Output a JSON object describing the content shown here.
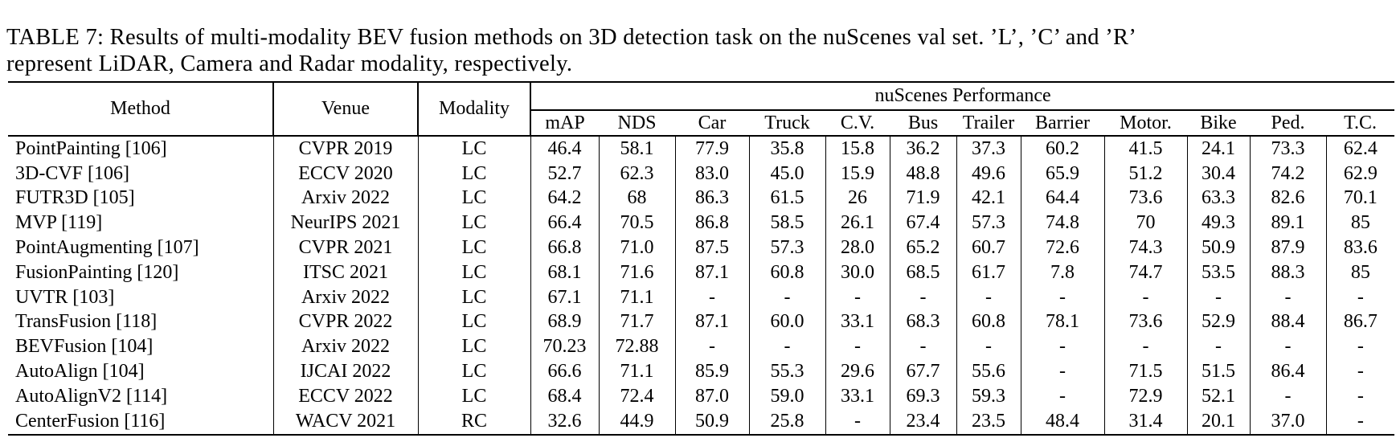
{
  "caption": {
    "line1": "TABLE 7: Results of multi-modality BEV fusion methods on 3D detection task on the nuScenes val set. ’L’, ’C’ and ’R’",
    "line2": "represent LiDAR, Camera and Radar modality, respectively."
  },
  "table": {
    "group_header": "nuScenes Performance",
    "columns": [
      "Method",
      "Venue",
      "Modality"
    ],
    "perf_columns": [
      "mAP",
      "NDS",
      "Car",
      "Truck",
      "C.V.",
      "Bus",
      "Trailer",
      "Barrier",
      "Motor.",
      "Bike",
      "Ped.",
      "T.C."
    ],
    "rows": [
      {
        "method": "PointPainting [106]",
        "venue": "CVPR 2019",
        "modality": "LC",
        "values": [
          "46.4",
          "58.1",
          "77.9",
          "35.8",
          "15.8",
          "36.2",
          "37.3",
          "60.2",
          "41.5",
          "24.1",
          "73.3",
          "62.4"
        ]
      },
      {
        "method": "3D-CVF [106]",
        "venue": "ECCV 2020",
        "modality": "LC",
        "values": [
          "52.7",
          "62.3",
          "83.0",
          "45.0",
          "15.9",
          "48.8",
          "49.6",
          "65.9",
          "51.2",
          "30.4",
          "74.2",
          "62.9"
        ]
      },
      {
        "method": "FUTR3D [105]",
        "venue": "Arxiv 2022",
        "modality": "LC",
        "values": [
          "64.2",
          "68",
          "86.3",
          "61.5",
          "26",
          "71.9",
          "42.1",
          "64.4",
          "73.6",
          "63.3",
          "82.6",
          "70.1"
        ]
      },
      {
        "method": "MVP [119]",
        "venue": "NeurIPS 2021",
        "modality": "LC",
        "values": [
          "66.4",
          "70.5",
          "86.8",
          "58.5",
          "26.1",
          "67.4",
          "57.3",
          "74.8",
          "70",
          "49.3",
          "89.1",
          "85"
        ]
      },
      {
        "method": "PointAugmenting [107]",
        "venue": "CVPR 2021",
        "modality": "LC",
        "values": [
          "66.8",
          "71.0",
          "87.5",
          "57.3",
          "28.0",
          "65.2",
          "60.7",
          "72.6",
          "74.3",
          "50.9",
          "87.9",
          "83.6"
        ]
      },
      {
        "method": "FusionPainting [120]",
        "venue": "ITSC 2021",
        "modality": "LC",
        "values": [
          "68.1",
          "71.6",
          "87.1",
          "60.8",
          "30.0",
          "68.5",
          "61.7",
          "7.8",
          "74.7",
          "53.5",
          "88.3",
          "85"
        ]
      },
      {
        "method": "UVTR [103]",
        "venue": "Arxiv 2022",
        "modality": "LC",
        "values": [
          "67.1",
          "71.1",
          "-",
          "-",
          "-",
          "-",
          "-",
          "-",
          "-",
          "-",
          "-",
          "-"
        ]
      },
      {
        "method": "TransFusion [118]",
        "venue": "CVPR 2022",
        "modality": "LC",
        "values": [
          "68.9",
          "71.7",
          "87.1",
          "60.0",
          "33.1",
          "68.3",
          "60.8",
          "78.1",
          "73.6",
          "52.9",
          "88.4",
          "86.7"
        ]
      },
      {
        "method": "BEVFusion [104]",
        "venue": "Arxiv 2022",
        "modality": "LC",
        "values": [
          "70.23",
          "72.88",
          "-",
          "-",
          "-",
          "-",
          "-",
          "-",
          "-",
          "-",
          "-",
          "-"
        ]
      },
      {
        "method": "AutoAlign [104]",
        "venue": "IJCAI 2022",
        "modality": "LC",
        "values": [
          "66.6",
          "71.1",
          "85.9",
          "55.3",
          "29.6",
          "67.7",
          "55.6",
          "-",
          "71.5",
          "51.5",
          "86.4",
          "-"
        ]
      },
      {
        "method": "AutoAlignV2 [114]",
        "venue": "ECCV 2022",
        "modality": "LC",
        "values": [
          "68.4",
          "72.4",
          "87.0",
          "59.0",
          "33.1",
          "69.3",
          "59.3",
          "-",
          "72.9",
          "52.1",
          "-",
          "-"
        ]
      },
      {
        "method": "CenterFusion [116]",
        "venue": "WACV 2021",
        "modality": "RC",
        "values": [
          "32.6",
          "44.9",
          "50.9",
          "25.8",
          "-",
          "23.4",
          "23.5",
          "48.4",
          "31.4",
          "20.1",
          "37.0",
          "-"
        ]
      }
    ]
  },
  "colors": {
    "text": "#000000",
    "background": "#ffffff",
    "rule": "#000000"
  }
}
